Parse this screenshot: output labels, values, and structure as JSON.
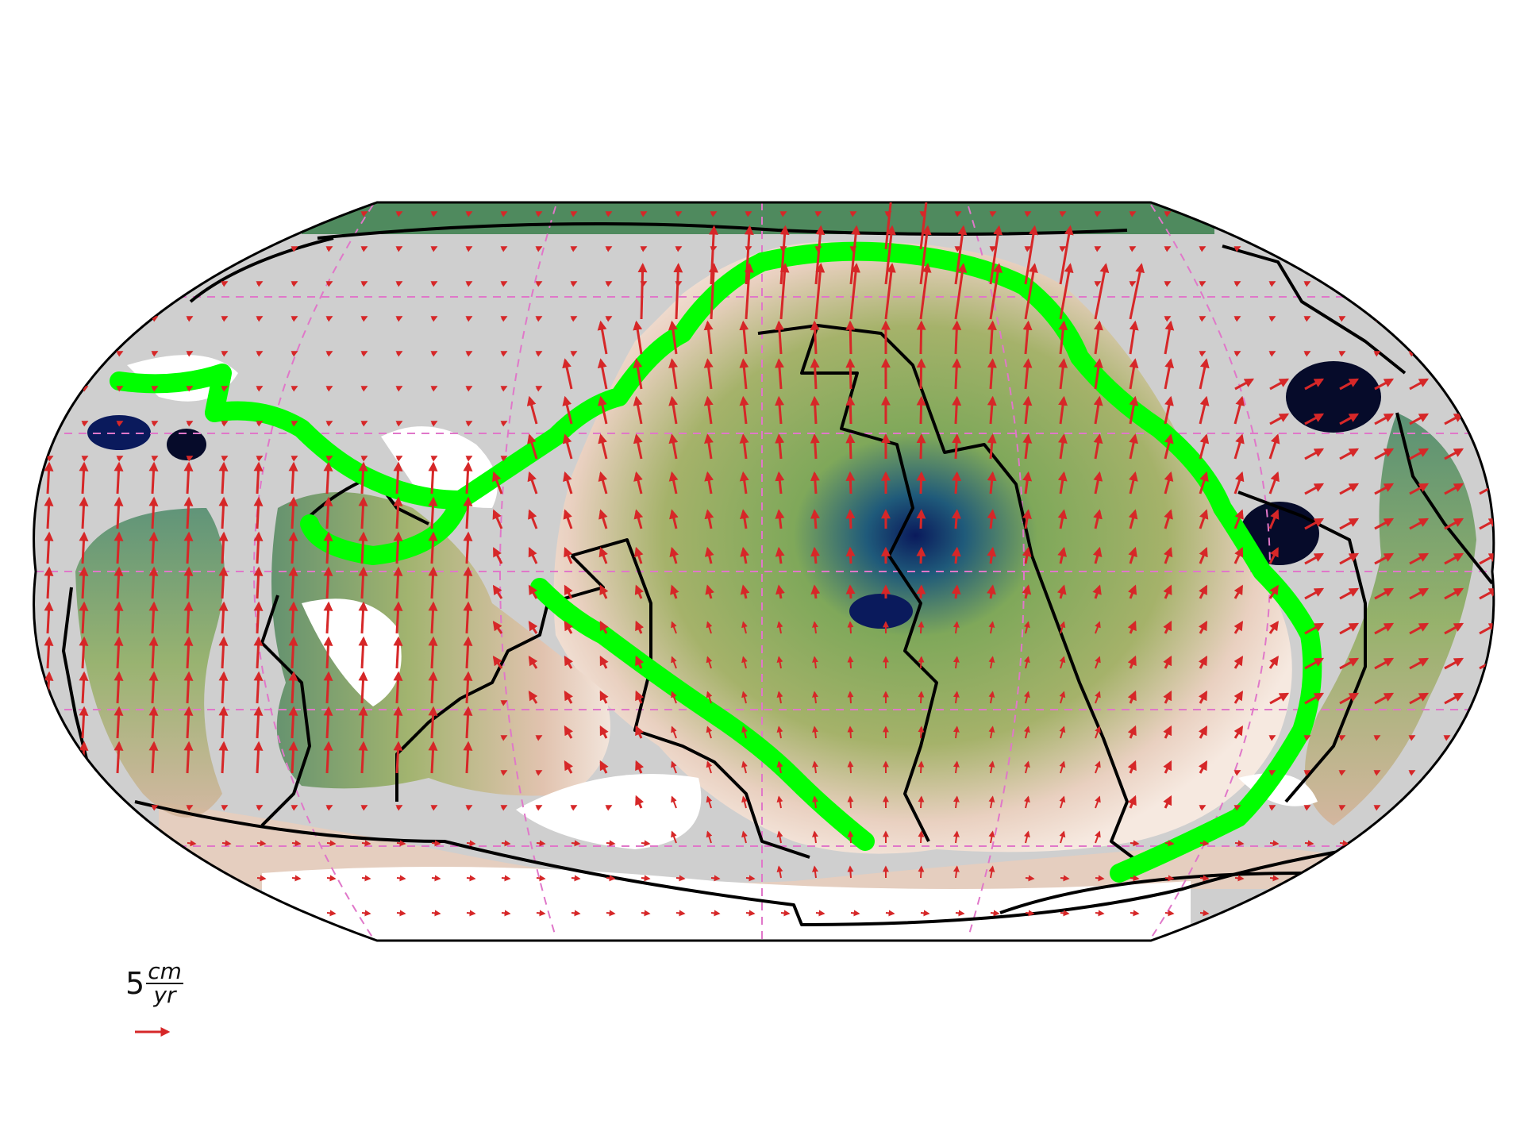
{
  "map": {
    "projection": "Robinson",
    "central_longitude_deg": -180,
    "graticule": {
      "lon_step_deg": 60,
      "lat_step_deg": 30,
      "style": "dashed",
      "color": "#e077c9"
    },
    "colors": {
      "ocean_fill_low": "#0a1a5c",
      "ocean_fill_mid": "#8db05a",
      "ocean_fill_high": "#e9c8b5",
      "land": "#cfcfcf",
      "continental_shelf": "#ffffff",
      "plate_boundary": "#000000",
      "velocity_arrow": "#d62728",
      "highlighted_boundary": "#00ff00"
    },
    "layers": [
      "seafloor-age-field",
      "coastlines",
      "plate-boundaries",
      "highlighted-plate-outline",
      "velocity-vectors"
    ]
  },
  "legend": {
    "value": "5",
    "unit_numerator": "cm",
    "unit_denominator": "yr",
    "arrow_color": "#d62728"
  }
}
